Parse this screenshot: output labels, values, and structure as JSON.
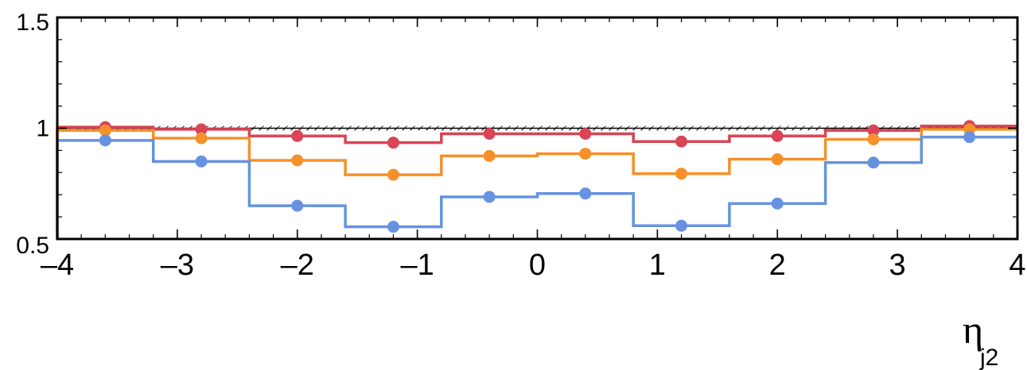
{
  "chart_data": {
    "type": "line",
    "x_edges": [
      -4,
      -3.2,
      -2.4,
      -1.6,
      -0.8,
      0,
      0.8,
      1.6,
      2.4,
      3.2,
      4
    ],
    "x_centers": [
      -3.6,
      -2.8,
      -2.0,
      -1.2,
      -0.4,
      0.4,
      1.2,
      2.0,
      2.8,
      3.6
    ],
    "series": [
      {
        "color": "#d94456",
        "values": [
          1.005,
          0.995,
          0.965,
          0.935,
          0.975,
          0.975,
          0.94,
          0.965,
          0.99,
          1.01
        ],
        "errors": [
          0.01,
          0.01,
          0.01,
          0.01,
          0.025,
          0.025,
          0.01,
          0.01,
          0.01,
          0.01
        ]
      },
      {
        "color": "#f5902a",
        "values": [
          0.99,
          0.955,
          0.855,
          0.79,
          0.875,
          0.885,
          0.795,
          0.86,
          0.95,
          0.995
        ],
        "errors": [
          0.01,
          0.01,
          0.01,
          0.01,
          0.025,
          0.025,
          0.01,
          0.01,
          0.01,
          0.01
        ]
      },
      {
        "color": "#6692e0",
        "values": [
          0.945,
          0.85,
          0.65,
          0.555,
          0.69,
          0.705,
          0.56,
          0.66,
          0.845,
          0.96
        ],
        "errors": [
          0.01,
          0.01,
          0.01,
          0.01,
          0.02,
          0.02,
          0.01,
          0.01,
          0.01,
          0.01
        ]
      }
    ],
    "band": {
      "low": 0.99,
      "high": 1.01
    },
    "reference_line": 1,
    "xlim": [
      -4,
      4
    ],
    "ylim": [
      0.5,
      1.5
    ],
    "x_ticks": [
      -4,
      -3,
      -2,
      -1,
      0,
      1,
      2,
      3,
      4
    ],
    "x_tick_labels": [
      "–4",
      "–3",
      "–2",
      "–1",
      "0",
      "1",
      "2",
      "3",
      "4"
    ],
    "y_ticks": [
      0.5,
      1,
      1.5
    ],
    "y_tick_labels": [
      "0.5",
      "1",
      "1.5"
    ],
    "xlabel": "η",
    "xlabel_sub": "j2",
    "ylabel": "",
    "title": "",
    "grid": false
  }
}
